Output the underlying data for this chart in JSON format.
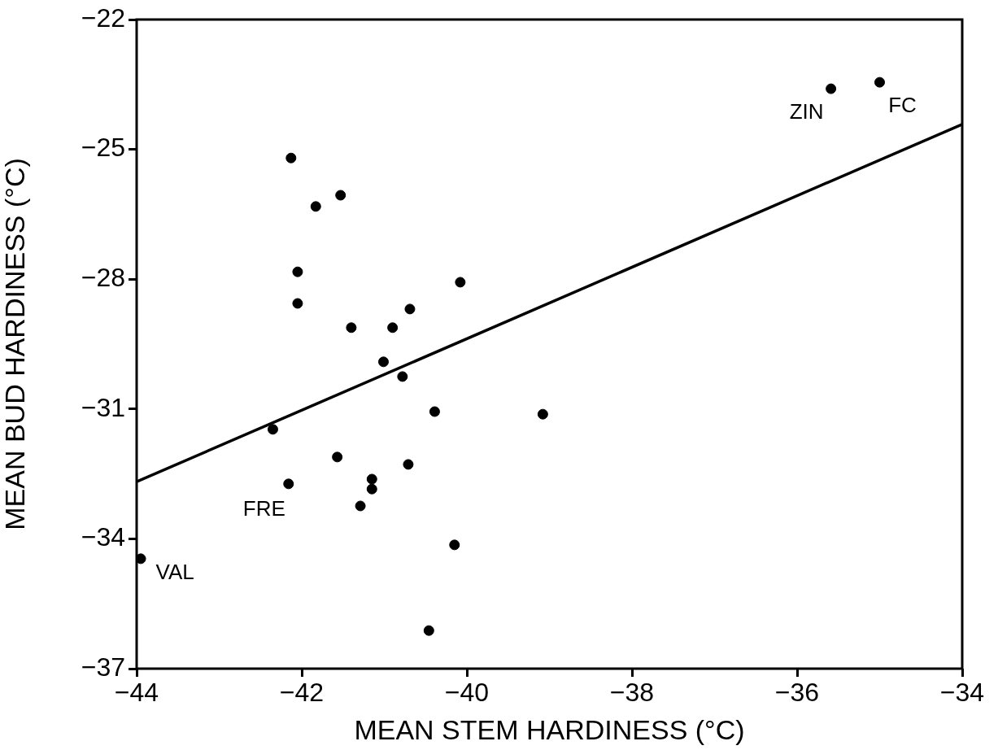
{
  "chart_data": {
    "type": "scatter",
    "xlabel": "MEAN STEM HARDINESS (°C)",
    "ylabel": "MEAN BUD HARDINESS (°C)",
    "xlim": [
      -44,
      -34
    ],
    "xticks": [
      -44,
      -42,
      -40,
      -38,
      -36,
      -34
    ],
    "ylim": [
      -37,
      -22
    ],
    "yticks": [
      -37,
      -34,
      -31,
      -28,
      -25,
      -22
    ],
    "grid": false,
    "legend": false,
    "marker": "circle",
    "series": [
      {
        "color": "#000000",
        "x": [
          -42.13,
          -41.53,
          -41.83,
          -42.05,
          -42.05,
          -40.08,
          -40.69,
          -41.4,
          -40.9,
          -41.01,
          -40.78,
          -42.35,
          -40.39,
          -39.08,
          -41.57,
          -40.71,
          -42.16,
          -41.15,
          -41.15,
          -41.29,
          -40.15,
          -43.95,
          -40.46,
          -35.59,
          -35.0
        ],
        "values": [
          -25.2,
          -26.06,
          -26.32,
          -27.83,
          -28.56,
          -28.07,
          -28.69,
          -29.12,
          -29.12,
          -29.91,
          -30.25,
          -31.47,
          -31.06,
          -31.12,
          -32.11,
          -32.28,
          -32.73,
          -32.62,
          -32.85,
          -33.24,
          -34.14,
          -34.46,
          -36.12,
          -23.6,
          -23.45
        ]
      },
      {
        "type": "line",
        "color": "#000000",
        "line_style": "solid",
        "marker": "none",
        "x": [
          -44,
          -34
        ],
        "values": [
          -32.68,
          -24.42
        ]
      }
    ],
    "annotations": [
      {
        "text": "ZIN",
        "x": -35.59,
        "y": -23.6
      },
      {
        "text": "FC",
        "x": -35.0,
        "y": -23.45
      },
      {
        "text": "FRE",
        "x": -42.16,
        "y": -32.73
      },
      {
        "text": "VAL",
        "x": -43.95,
        "y": -34.46
      }
    ]
  }
}
